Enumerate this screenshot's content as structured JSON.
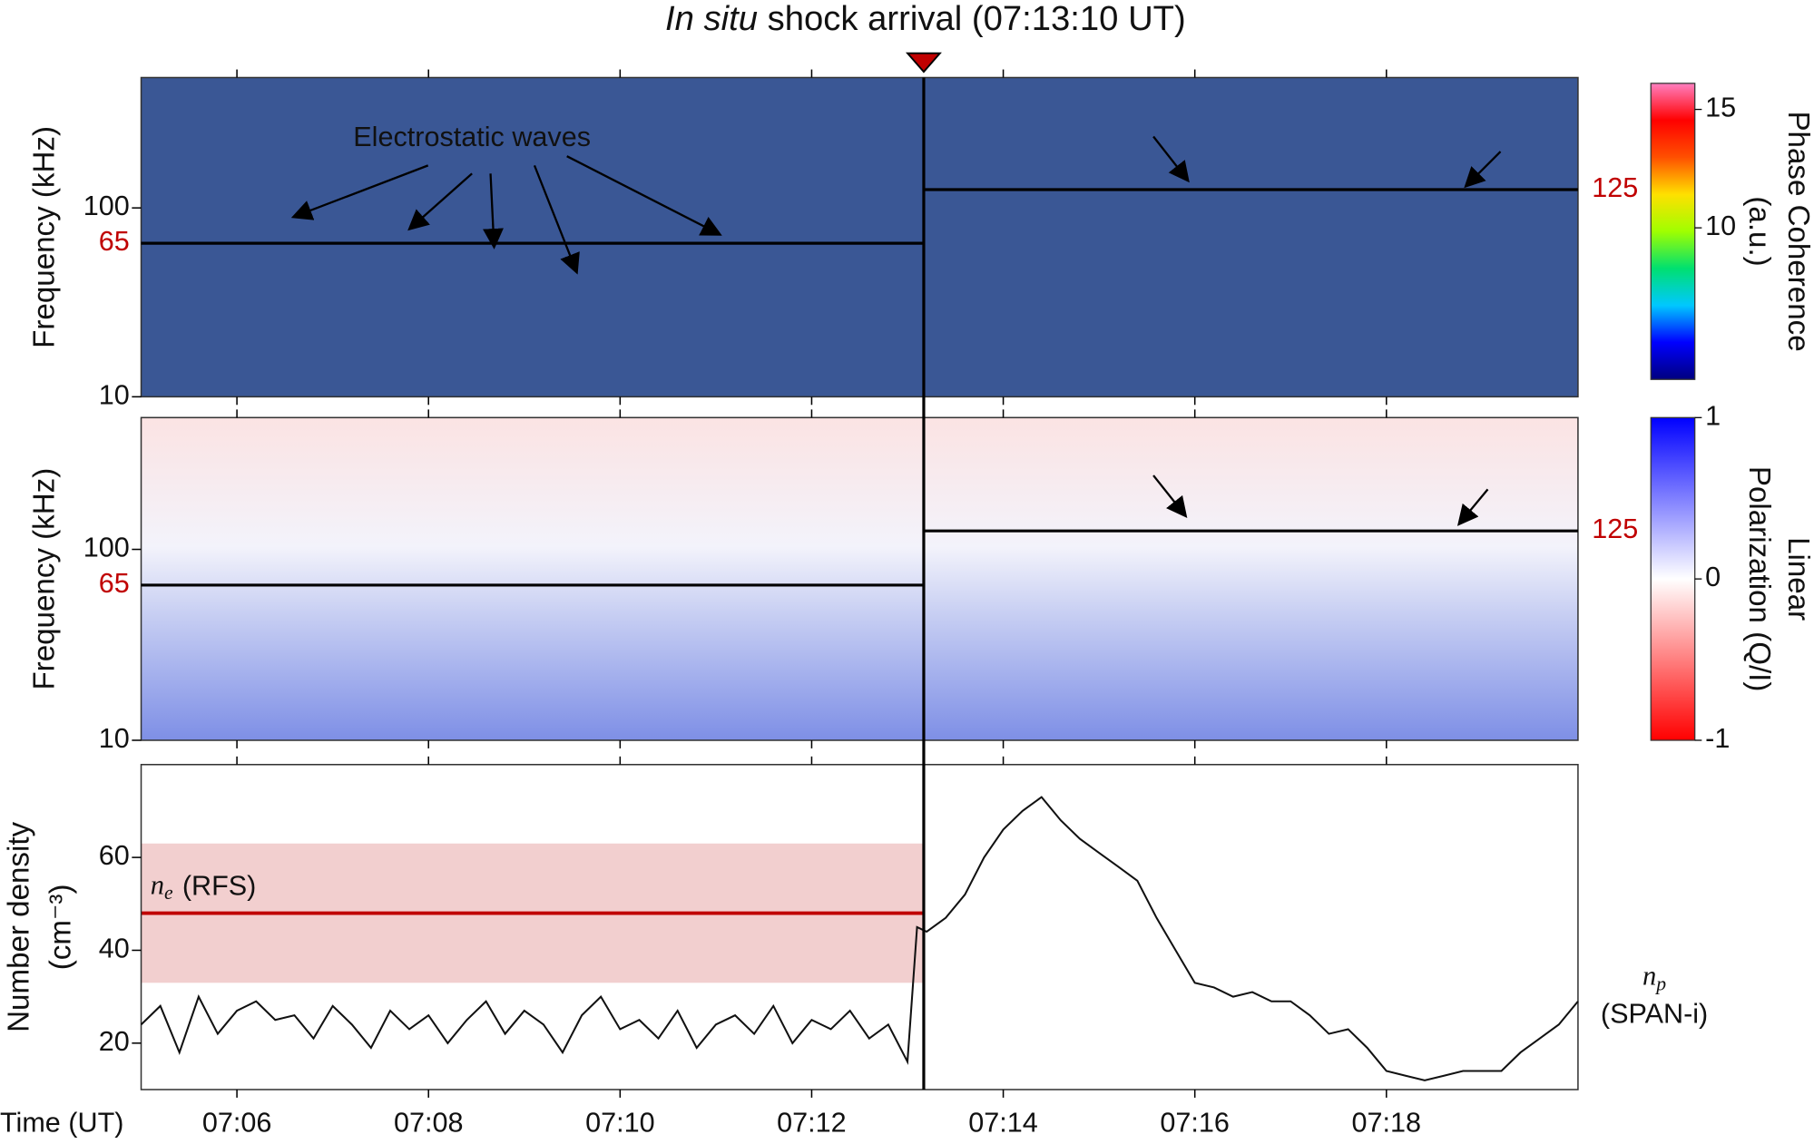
{
  "title_italic": "In situ",
  "title_rest": "shock arrival (07:13:10 UT)",
  "annotation": "Electrostatic waves",
  "chart_data": [
    {
      "type": "spectrogram",
      "ylabel": "Frequency (kHz)",
      "ylim": [
        10,
        490
      ],
      "log": true,
      "yticks": [
        10,
        100
      ],
      "levels": [
        65,
        125
      ],
      "level_color": "#c00000",
      "background": "#3a5795",
      "colorbar": {
        "label_lines": [
          "Phase Coherence",
          "(a.u.)"
        ],
        "clim": [
          3.6,
          16.1
        ],
        "ticks": [
          10,
          15
        ],
        "colors": [
          "#00007f",
          "#0000ff",
          "#00c8ff",
          "#00e070",
          "#a0ff00",
          "#ffe000",
          "#ff5000",
          "#ff0000",
          "#ff7fc0"
        ]
      }
    },
    {
      "type": "spectrogram",
      "ylabel": "Frequency (kHz)",
      "ylim": [
        10,
        490
      ],
      "log": true,
      "yticks": [
        10,
        100
      ],
      "levels": [
        65,
        125
      ],
      "level_color": "#c00000",
      "colorbar": {
        "label_lines": [
          "Linear",
          "Polarization  (Q/I)"
        ],
        "clim": [
          -1,
          1
        ],
        "ticks": [
          -1,
          0,
          1
        ],
        "colors": [
          "#ff0000",
          "#ffffff",
          "#0000ff"
        ]
      }
    },
    {
      "type": "line",
      "ylabel_lines": [
        "Number density",
        "(cm⁻³)"
      ],
      "xlabel": "Time (UT)",
      "xlim": [
        5,
        20
      ],
      "xticks": [
        {
          "value": 6,
          "label": "07:06"
        },
        {
          "value": 8,
          "label": "07:08"
        },
        {
          "value": 10,
          "label": "07:10"
        },
        {
          "value": 12,
          "label": "07:12"
        },
        {
          "value": 14,
          "label": "07:14"
        },
        {
          "value": 16,
          "label": "07:16"
        },
        {
          "value": 18,
          "label": "07:18"
        }
      ],
      "ylim": [
        10,
        80
      ],
      "yticks": [
        20,
        40,
        60
      ],
      "shock_x": 13.17,
      "marker_color": "#c00000",
      "band": [
        33,
        63
      ],
      "band_color": "#f2cfcf",
      "ne": 48,
      "ne_color": "#c00000",
      "ne_symbol": "n",
      "ne_sub": "e",
      "ne_label": "(RFS)",
      "series": [
        {
          "name": "(SPAN-i)",
          "symbol": "n",
          "symbol_sub": "p",
          "color": "#111111",
          "x": [
            5.0,
            5.2,
            5.4,
            5.6,
            5.8,
            6.0,
            6.2,
            6.4,
            6.6,
            6.8,
            7.0,
            7.2,
            7.4,
            7.6,
            7.8,
            8.0,
            8.2,
            8.4,
            8.6,
            8.8,
            9.0,
            9.2,
            9.4,
            9.6,
            9.8,
            10.0,
            10.2,
            10.4,
            10.6,
            10.8,
            11.0,
            11.2,
            11.4,
            11.6,
            11.8,
            12.0,
            12.2,
            12.4,
            12.6,
            12.8,
            13.0,
            13.1,
            13.2,
            13.4,
            13.6,
            13.8,
            14.0,
            14.2,
            14.4,
            14.6,
            14.8,
            15.0,
            15.2,
            15.4,
            15.6,
            15.8,
            16.0,
            16.2,
            16.4,
            16.6,
            16.8,
            17.0,
            17.2,
            17.4,
            17.6,
            17.8,
            18.0,
            18.2,
            18.4,
            18.6,
            18.8,
            19.0,
            19.2,
            19.4,
            19.6,
            19.8,
            20.0
          ],
          "values": [
            24,
            28,
            18,
            30,
            22,
            27,
            29,
            25,
            26,
            21,
            28,
            24,
            19,
            27,
            23,
            26,
            20,
            25,
            29,
            22,
            27,
            24,
            18,
            26,
            30,
            23,
            25,
            21,
            27,
            19,
            24,
            26,
            22,
            28,
            20,
            25,
            23,
            27,
            21,
            24,
            16,
            45,
            44,
            47,
            52,
            60,
            66,
            70,
            73,
            68,
            64,
            61,
            58,
            55,
            47,
            40,
            33,
            32,
            30,
            31,
            29,
            29,
            26,
            22,
            23,
            19,
            14,
            13,
            12,
            13,
            14,
            14,
            14,
            18,
            21,
            24,
            29
          ]
        }
      ]
    }
  ]
}
